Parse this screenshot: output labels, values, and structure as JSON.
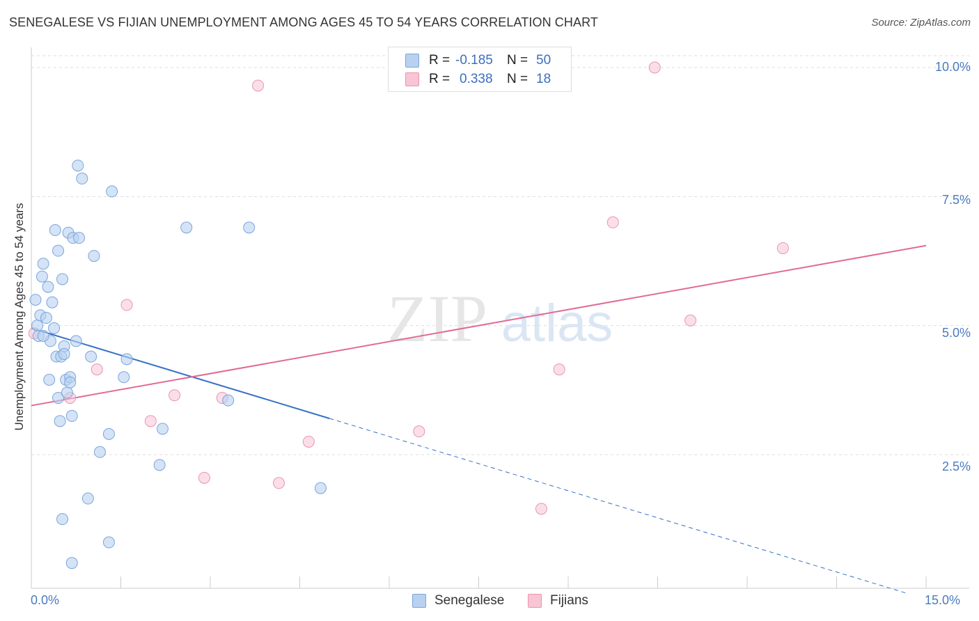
{
  "title": "SENEGALESE VS FIJIAN UNEMPLOYMENT AMONG AGES 45 TO 54 YEARS CORRELATION CHART",
  "source": "Source: ZipAtlas.com",
  "watermark": {
    "zip": "ZIP",
    "atlas": "atlas"
  },
  "legend": {
    "rows": [
      {
        "r_label": "R =",
        "r_value": "-0.185",
        "n_label": "N =",
        "n_value": "50"
      },
      {
        "r_label": "R =",
        "r_value": "0.338",
        "n_label": "N =",
        "n_value": "18"
      }
    ]
  },
  "bottom_legend": {
    "senegalese": "Senegalese",
    "fijians": "Fijians"
  },
  "colors": {
    "senegalese_fill": "#b8d1f0",
    "senegalese_stroke": "#7aa5dd",
    "senegalese_line": "#3570c8",
    "fijians_fill": "#f8c5d5",
    "fijians_stroke": "#e994b0",
    "fijians_line": "#e06b95",
    "grid": "#dddddd",
    "tick_text": "#4a7bbf"
  },
  "chart_data": {
    "type": "scatter",
    "title": "SENEGALESE VS FIJIAN UNEMPLOYMENT AMONG AGES 45 TO 54 YEARS CORRELATION CHART",
    "xlabel": "",
    "ylabel": "Unemployment Among Ages 45 to 54 years",
    "xlim": [
      0,
      15
    ],
    "ylim": [
      0,
      10.2
    ],
    "x_tick_labels": [
      "0.0%",
      "15.0%"
    ],
    "y_ticks": [
      2.5,
      5.0,
      7.5,
      10.0
    ],
    "y_tick_labels": [
      "2.5%",
      "5.0%",
      "7.5%",
      "10.0%"
    ],
    "grid": true,
    "series": [
      {
        "name": "Senegalese",
        "R": -0.185,
        "N": 50,
        "trend": {
          "x0": 0.0,
          "y0": 4.95,
          "x1": 5.0,
          "y1": 3.2,
          "dashed_to_x": 14.7
        },
        "points": [
          [
            0.07,
            5.5
          ],
          [
            0.1,
            5.0
          ],
          [
            0.12,
            4.8
          ],
          [
            0.15,
            5.2
          ],
          [
            0.18,
            5.95
          ],
          [
            0.2,
            6.2
          ],
          [
            0.25,
            5.15
          ],
          [
            0.28,
            5.75
          ],
          [
            0.3,
            3.95
          ],
          [
            0.32,
            4.7
          ],
          [
            0.35,
            5.45
          ],
          [
            0.38,
            4.95
          ],
          [
            0.4,
            6.85
          ],
          [
            0.42,
            4.4
          ],
          [
            0.45,
            3.6
          ],
          [
            0.45,
            6.45
          ],
          [
            0.48,
            3.15
          ],
          [
            0.5,
            4.4
          ],
          [
            0.52,
            1.25
          ],
          [
            0.52,
            5.9
          ],
          [
            0.55,
            4.6
          ],
          [
            0.58,
            3.95
          ],
          [
            0.6,
            3.7
          ],
          [
            0.62,
            6.8
          ],
          [
            0.65,
            4.0
          ],
          [
            0.68,
            3.25
          ],
          [
            0.68,
            0.4
          ],
          [
            0.7,
            6.7
          ],
          [
            0.75,
            4.7
          ],
          [
            0.78,
            8.1
          ],
          [
            0.8,
            6.7
          ],
          [
            0.85,
            7.85
          ],
          [
            0.95,
            1.65
          ],
          [
            1.0,
            4.4
          ],
          [
            1.05,
            6.35
          ],
          [
            1.15,
            2.55
          ],
          [
            1.3,
            0.8
          ],
          [
            1.3,
            2.9
          ],
          [
            1.35,
            7.6
          ],
          [
            1.55,
            4.0
          ],
          [
            1.6,
            4.35
          ],
          [
            2.15,
            2.3
          ],
          [
            2.2,
            3.0
          ],
          [
            2.6,
            6.9
          ],
          [
            3.3,
            3.55
          ],
          [
            3.65,
            6.9
          ],
          [
            4.85,
            1.85
          ],
          [
            0.2,
            4.8
          ],
          [
            0.55,
            4.45
          ],
          [
            0.65,
            3.9
          ]
        ]
      },
      {
        "name": "Fijians",
        "R": 0.338,
        "N": 18,
        "trend": {
          "x0": 0.0,
          "y0": 3.45,
          "x1": 15.0,
          "y1": 6.55
        },
        "points": [
          [
            0.05,
            4.85
          ],
          [
            0.65,
            3.6
          ],
          [
            1.1,
            4.15
          ],
          [
            1.6,
            5.4
          ],
          [
            2.0,
            3.15
          ],
          [
            2.4,
            3.65
          ],
          [
            2.9,
            2.05
          ],
          [
            3.2,
            3.6
          ],
          [
            3.8,
            9.65
          ],
          [
            4.15,
            1.95
          ],
          [
            4.65,
            2.75
          ],
          [
            6.5,
            2.95
          ],
          [
            8.55,
            1.45
          ],
          [
            8.85,
            4.15
          ],
          [
            9.75,
            7.0
          ],
          [
            10.45,
            10.0
          ],
          [
            11.05,
            5.1
          ],
          [
            12.6,
            6.5
          ]
        ]
      }
    ]
  }
}
